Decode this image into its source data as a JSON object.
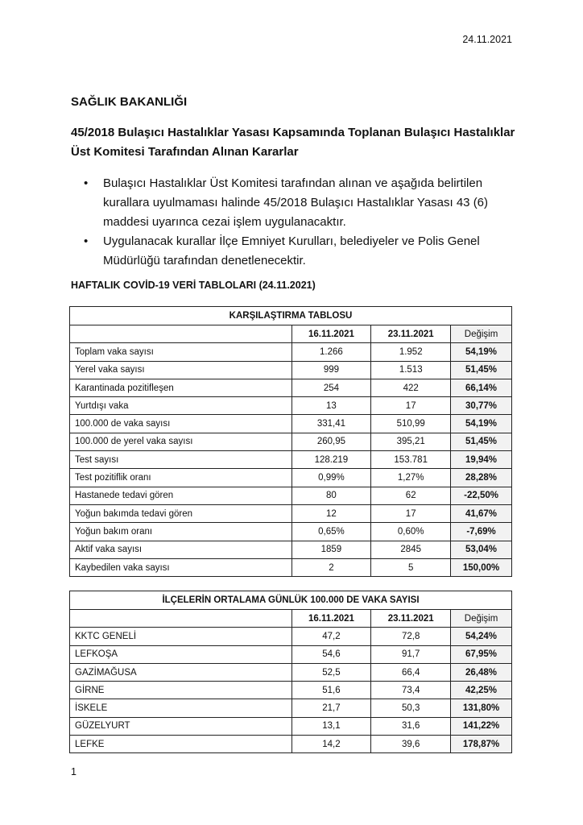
{
  "date": "24.11.2021",
  "organization": "SAĞLIK BAKANLIĞI",
  "title": "45/2018 Bulaşıcı Hastalıklar Yasası Kapsamında Toplanan Bulaşıcı Hastalıklar Üst Komitesi Tarafından Alınan Kararlar",
  "bullets": [
    "Bulaşıcı Hastalıklar Üst Komitesi tarafından alınan ve aşağıda belirtilen kurallara uyulmaması halinde 45/2018 Bulaşıcı Hastalıklar Yasası 43 (6) maddesi uyarınca cezai işlem uygulanacaktır.",
    "Uygulanacak kurallar İlçe Emniyet Kurulları, belediyeler ve Polis Genel Müdürlüğü tarafından denetlenecektir."
  ],
  "bullet_symbol": "•",
  "section_title": "HAFTALIK COVİD-19 VERİ TABLOLARI  (24.11.2021)",
  "table1": {
    "title": "KARŞILAŞTIRMA TABLOSU",
    "headers": [
      "",
      "16.11.2021",
      "23.11.2021",
      "Değişim"
    ],
    "rows": [
      [
        "Toplam vaka sayısı",
        "1.266",
        "1.952",
        "54,19%"
      ],
      [
        "Yerel vaka sayısı",
        "999",
        "1.513",
        "51,45%"
      ],
      [
        "Karantinada pozitifleşen",
        "254",
        "422",
        "66,14%"
      ],
      [
        "Yurtdışı vaka",
        "13",
        "17",
        "30,77%"
      ],
      [
        "100.000 de vaka sayısı",
        "331,41",
        "510,99",
        "54,19%"
      ],
      [
        "100.000 de yerel vaka sayısı",
        "260,95",
        "395,21",
        "51,45%"
      ],
      [
        "Test sayısı",
        "128.219",
        "153.781",
        "19,94%"
      ],
      [
        "Test pozitiflik oranı",
        "0,99%",
        "1,27%",
        "28,28%"
      ],
      [
        "Hastanede tedavi gören",
        "80",
        "62",
        "-22,50%"
      ],
      [
        "Yoğun bakımda tedavi gören",
        "12",
        "17",
        "41,67%"
      ],
      [
        "Yoğun bakım oranı",
        "0,65%",
        "0,60%",
        "-7,69%"
      ],
      [
        "Aktif vaka sayısı",
        "1859",
        "2845",
        "53,04%"
      ],
      [
        "Kaybedilen vaka sayısı",
        "2",
        "5",
        "150,00%"
      ]
    ]
  },
  "table2": {
    "title": "İLÇELERİN ORTALAMA GÜNLÜK 100.000 DE VAKA SAYISI",
    "headers": [
      "",
      "16.11.2021",
      "23.11.2021",
      "Değişim"
    ],
    "rows": [
      [
        "KKTC GENELİ",
        "47,2",
        "72,8",
        "54,24%"
      ],
      [
        "LEFKOŞA",
        "54,6",
        "91,7",
        "67,95%"
      ],
      [
        "GAZİMAĞUSA",
        "52,5",
        "66,4",
        "26,48%"
      ],
      [
        "GİRNE",
        "51,6",
        "73,4",
        "42,25%"
      ],
      [
        "İSKELE",
        "21,7",
        "50,3",
        "131,80%"
      ],
      [
        "GÜZELYURT",
        "13,1",
        "31,6",
        "141,22%"
      ],
      [
        "LEFKE",
        "14,2",
        "39,6",
        "178,87%"
      ]
    ]
  },
  "page_number": "1",
  "colors": {
    "change_column_bg": "#f2f2f2",
    "border": "#222222"
  }
}
